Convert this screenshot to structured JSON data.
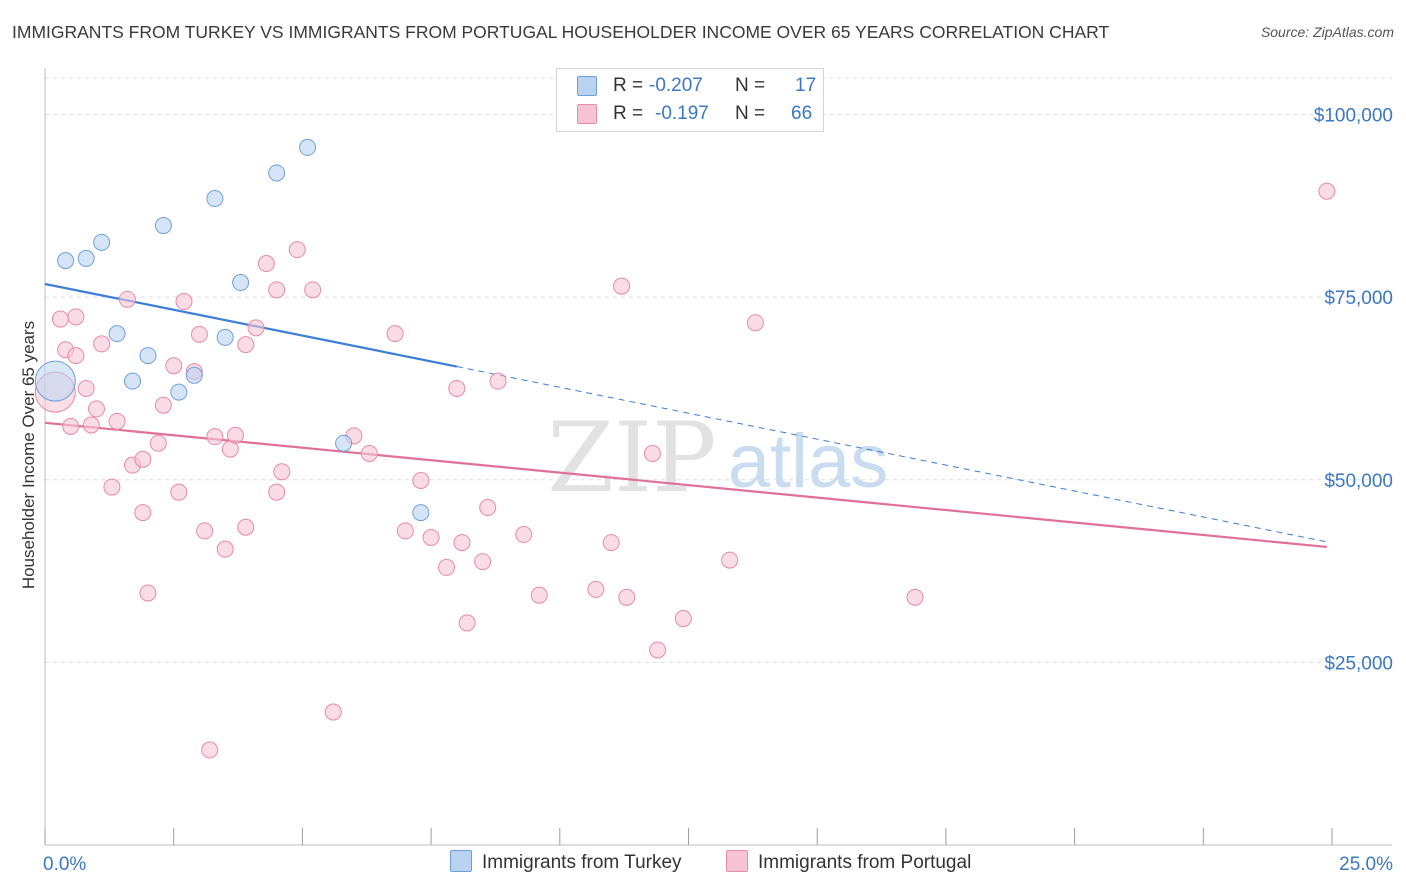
{
  "title": "IMMIGRANTS FROM TURKEY VS IMMIGRANTS FROM PORTUGAL HOUSEHOLDER INCOME OVER 65 YEARS CORRELATION CHART",
  "source": "Source: ZipAtlas.com",
  "watermark": {
    "zip": "ZIP",
    "atlas": "atlas"
  },
  "legend": {
    "turkey": {
      "r_label": "R = ",
      "r_value": "-0.207",
      "n_label": "N = ",
      "n_value": "17"
    },
    "portugal": {
      "r_label": "R = ",
      "r_value": "-0.197",
      "n_label": "N = ",
      "n_value": "66"
    }
  },
  "chart_data": {
    "type": "scatter",
    "title": "IMMIGRANTS FROM TURKEY VS IMMIGRANTS FROM PORTUGAL HOUSEHOLDER INCOME OVER 65 YEARS CORRELATION CHART",
    "xlabel": "",
    "ylabel": "Householder Income Over 65 years",
    "xlim": [
      0,
      25
    ],
    "ylim": [
      0,
      105000
    ],
    "x_tick_labels": [
      "0.0%",
      "25.0%"
    ],
    "y_ticks": [
      {
        "value": 25000,
        "label": "$25,000"
      },
      {
        "value": 50000,
        "label": "$50,000"
      },
      {
        "value": 75000,
        "label": "$75,000"
      },
      {
        "value": 100000,
        "label": "$100,000"
      }
    ],
    "series": [
      {
        "name": "Immigrants from Turkey",
        "color": "#6fa0dc",
        "fill": "#b9d3f1",
        "trend": {
          "x0": 0,
          "y0": 76800,
          "x1": 8.0,
          "y1": 65500,
          "dash_to_x": 24.9,
          "dash_to_y": 41500,
          "color": "#3b7dd8"
        },
        "points": [
          {
            "x": 0.2,
            "y": 63500,
            "big": true
          },
          {
            "x": 0.4,
            "y": 80000
          },
          {
            "x": 0.8,
            "y": 80300
          },
          {
            "x": 1.1,
            "y": 82500
          },
          {
            "x": 1.4,
            "y": 70000
          },
          {
            "x": 1.7,
            "y": 63500
          },
          {
            "x": 2.0,
            "y": 67000
          },
          {
            "x": 2.3,
            "y": 84800
          },
          {
            "x": 2.6,
            "y": 62000
          },
          {
            "x": 2.9,
            "y": 64300
          },
          {
            "x": 3.3,
            "y": 88500
          },
          {
            "x": 3.5,
            "y": 69500
          },
          {
            "x": 3.8,
            "y": 77000
          },
          {
            "x": 4.5,
            "y": 92000
          },
          {
            "x": 5.1,
            "y": 95500
          },
          {
            "x": 5.8,
            "y": 55000
          },
          {
            "x": 7.3,
            "y": 45500
          }
        ]
      },
      {
        "name": "Immigrants from Portugal",
        "color": "#e98aa7",
        "fill": "#f6c4d4",
        "trend": {
          "x0": 0,
          "y0": 57800,
          "x1": 24.9,
          "y1": 40800,
          "color": "#e0709a"
        },
        "points": [
          {
            "x": 0.2,
            "y": 62000,
            "big": true
          },
          {
            "x": 0.3,
            "y": 72000
          },
          {
            "x": 0.4,
            "y": 67800
          },
          {
            "x": 0.6,
            "y": 72300
          },
          {
            "x": 0.6,
            "y": 67000
          },
          {
            "x": 0.8,
            "y": 62500
          },
          {
            "x": 0.9,
            "y": 57500
          },
          {
            "x": 1.0,
            "y": 59700
          },
          {
            "x": 1.1,
            "y": 68600
          },
          {
            "x": 1.3,
            "y": 49000
          },
          {
            "x": 1.4,
            "y": 58000
          },
          {
            "x": 1.6,
            "y": 74700
          },
          {
            "x": 1.7,
            "y": 52000
          },
          {
            "x": 1.9,
            "y": 52800
          },
          {
            "x": 1.9,
            "y": 45500
          },
          {
            "x": 2.0,
            "y": 34500
          },
          {
            "x": 2.2,
            "y": 55000
          },
          {
            "x": 2.3,
            "y": 60200
          },
          {
            "x": 2.5,
            "y": 65600
          },
          {
            "x": 2.6,
            "y": 48300
          },
          {
            "x": 2.7,
            "y": 74400
          },
          {
            "x": 2.9,
            "y": 64800
          },
          {
            "x": 3.0,
            "y": 69900
          },
          {
            "x": 3.1,
            "y": 43000
          },
          {
            "x": 3.2,
            "y": 13000
          },
          {
            "x": 3.3,
            "y": 55900
          },
          {
            "x": 3.5,
            "y": 40500
          },
          {
            "x": 3.6,
            "y": 54200
          },
          {
            "x": 3.7,
            "y": 56100
          },
          {
            "x": 3.9,
            "y": 43500
          },
          {
            "x": 3.9,
            "y": 68500
          },
          {
            "x": 4.1,
            "y": 70800
          },
          {
            "x": 4.3,
            "y": 79600
          },
          {
            "x": 4.5,
            "y": 76000
          },
          {
            "x": 4.5,
            "y": 48300
          },
          {
            "x": 4.6,
            "y": 51100
          },
          {
            "x": 4.9,
            "y": 81500
          },
          {
            "x": 5.2,
            "y": 76000
          },
          {
            "x": 5.6,
            "y": 18200
          },
          {
            "x": 6.0,
            "y": 56000
          },
          {
            "x": 6.3,
            "y": 53600
          },
          {
            "x": 6.8,
            "y": 70000
          },
          {
            "x": 7.0,
            "y": 43000
          },
          {
            "x": 7.3,
            "y": 49900
          },
          {
            "x": 7.5,
            "y": 42100
          },
          {
            "x": 7.8,
            "y": 38000
          },
          {
            "x": 8.0,
            "y": 62500
          },
          {
            "x": 8.1,
            "y": 41400
          },
          {
            "x": 8.2,
            "y": 30400
          },
          {
            "x": 8.5,
            "y": 38800
          },
          {
            "x": 8.6,
            "y": 46200
          },
          {
            "x": 8.8,
            "y": 63500
          },
          {
            "x": 9.3,
            "y": 42500
          },
          {
            "x": 9.6,
            "y": 34200
          },
          {
            "x": 10.7,
            "y": 35000
          },
          {
            "x": 11.0,
            "y": 41400
          },
          {
            "x": 11.2,
            "y": 76500
          },
          {
            "x": 11.3,
            "y": 33900
          },
          {
            "x": 11.8,
            "y": 53600
          },
          {
            "x": 11.9,
            "y": 26700
          },
          {
            "x": 12.4,
            "y": 31000
          },
          {
            "x": 13.3,
            "y": 39000
          },
          {
            "x": 13.8,
            "y": 71500
          },
          {
            "x": 16.9,
            "y": 33900
          },
          {
            "x": 24.9,
            "y": 89500
          },
          {
            "x": 0.5,
            "y": 57300
          }
        ]
      }
    ]
  },
  "bottom_legend": {
    "turkey": "Immigrants from Turkey",
    "portugal": "Immigrants from Portugal"
  }
}
